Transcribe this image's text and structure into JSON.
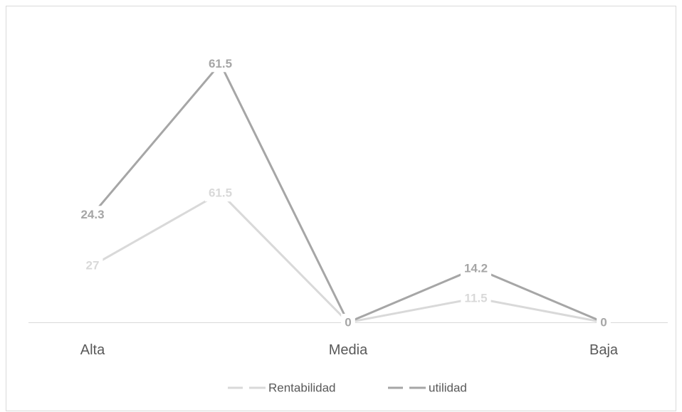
{
  "chart_data": {
    "type": "line",
    "stacked": true,
    "title": "",
    "xlabel": "",
    "ylabel": "",
    "categories": [
      "Alta",
      "",
      "Media",
      "",
      "Baja"
    ],
    "series": [
      {
        "name": "Rentabilidad",
        "values": [
          27,
          61.5,
          0,
          11.5,
          0
        ],
        "color": "#d9d9d9"
      },
      {
        "name": "utilidad",
        "values": [
          24.3,
          61.5,
          0,
          14.2,
          0
        ],
        "color": "#a6a6a6"
      }
    ],
    "data_labels": true,
    "ylim": [
      0,
      140
    ],
    "grid": false,
    "value_axis_visible": false,
    "legend_position": "bottom",
    "axis_color": "#d9d9d9",
    "border_color": "#d9d9d9"
  }
}
